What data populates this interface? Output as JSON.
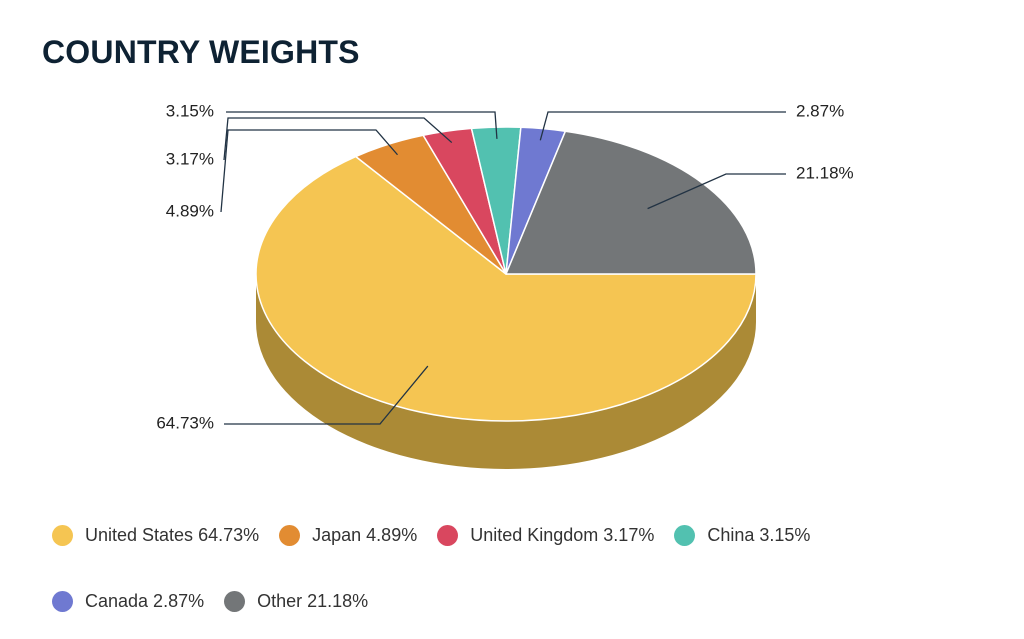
{
  "chart_data": {
    "type": "pie",
    "title": "COUNTRY WEIGHTS",
    "slices": [
      {
        "name": "United States",
        "value": 64.73,
        "label": "64.73%",
        "legend": "United States 64.73%",
        "color": "#f5c552",
        "side_color": "#ab8a36"
      },
      {
        "name": "Japan",
        "value": 4.89,
        "label": "4.89%",
        "legend": "Japan 4.89%",
        "color": "#e28c32",
        "side_color": "#9e6223"
      },
      {
        "name": "United Kingdom",
        "value": 3.17,
        "label": "3.17%",
        "legend": "United Kingdom 3.17%",
        "color": "#d9475f",
        "side_color": "#983243"
      },
      {
        "name": "China",
        "value": 3.15,
        "label": "3.15%",
        "legend": "China 3.15%",
        "color": "#52c1b0",
        "side_color": "#39877b"
      },
      {
        "name": "Canada",
        "value": 2.87,
        "label": "2.87%",
        "legend": "Canada 2.87%",
        "color": "#6f79d1",
        "side_color": "#4e5592"
      },
      {
        "name": "Other",
        "value": 21.18,
        "label": "21.18%",
        "legend": "Other 21.18%",
        "color": "#737678",
        "side_color": "#505354"
      }
    ],
    "legend_position": "bottom"
  }
}
